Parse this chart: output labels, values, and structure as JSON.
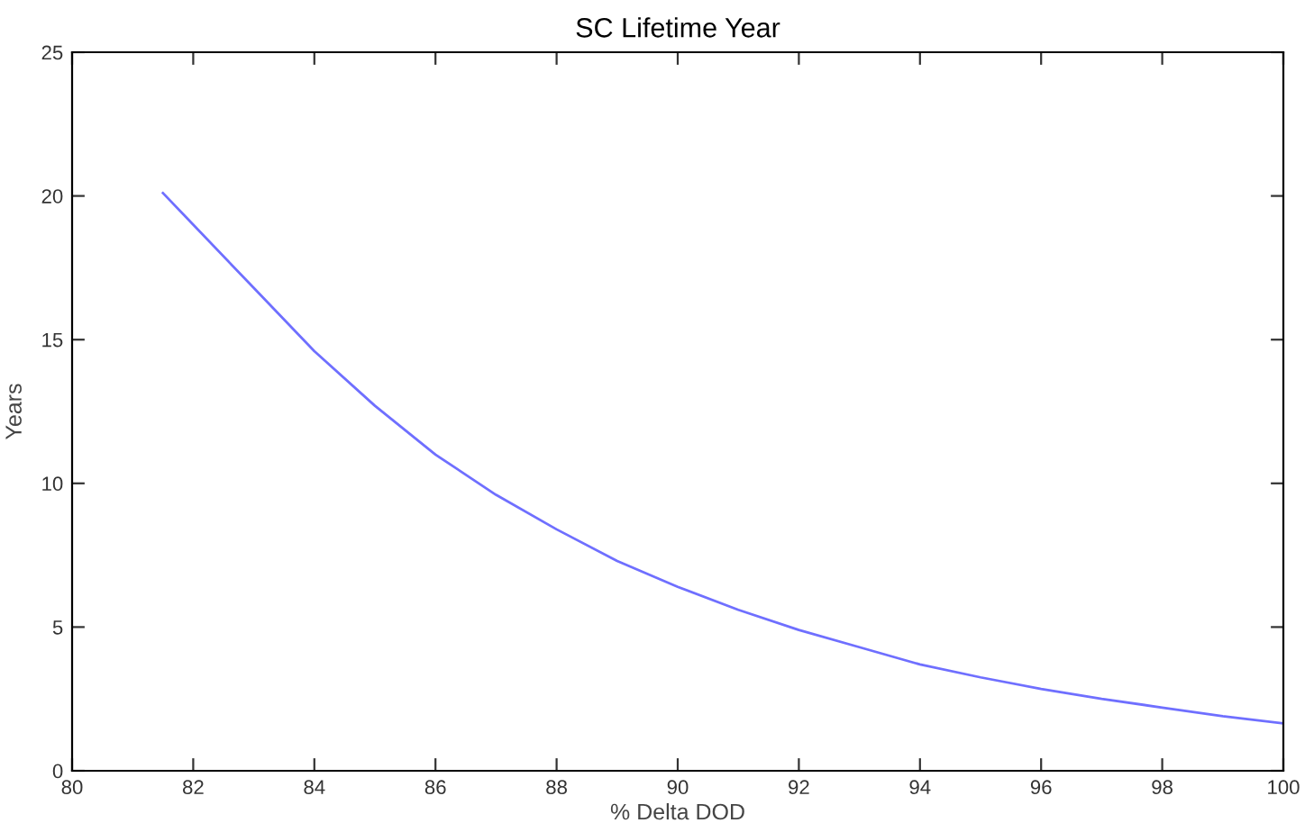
{
  "chart_data": {
    "type": "line",
    "title": "SC Lifetime Year",
    "xlabel": "% Delta DOD",
    "ylabel": "Years",
    "x": [
      81.5,
      82,
      83,
      84,
      85,
      86,
      87,
      88,
      89,
      90,
      91,
      92,
      93,
      94,
      95,
      96,
      97,
      98,
      99,
      100
    ],
    "series": [
      {
        "color": "#6f6fff",
        "values": [
          20.1,
          19.0,
          16.8,
          14.6,
          12.7,
          11.0,
          9.6,
          8.4,
          7.3,
          6.4,
          5.6,
          4.9,
          4.3,
          3.7,
          3.25,
          2.85,
          2.5,
          2.2,
          1.9,
          1.65
        ]
      }
    ],
    "xlim": [
      80,
      100
    ],
    "xticks": [
      80,
      82,
      84,
      86,
      88,
      90,
      92,
      94,
      96,
      98,
      100
    ],
    "ylim": [
      0,
      25
    ],
    "yticks": [
      0,
      5,
      10,
      15,
      20,
      25
    ],
    "grid": false,
    "legend": false,
    "marker": "none",
    "line_style": "solid"
  }
}
